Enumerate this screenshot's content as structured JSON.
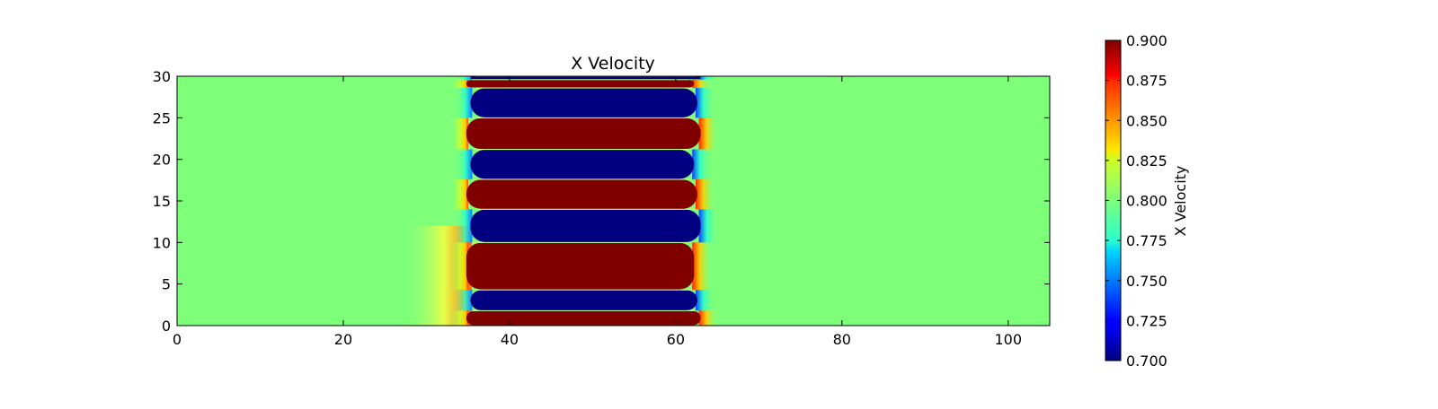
{
  "chart_data": {
    "type": "heatmap",
    "title": "X Velocity",
    "xlabel": "",
    "ylabel": "",
    "xlim": [
      0,
      105
    ],
    "ylim": [
      0,
      30
    ],
    "x_ticks": [
      0,
      20,
      40,
      60,
      80,
      100
    ],
    "y_ticks": [
      0,
      5,
      10,
      15,
      20,
      25,
      30
    ],
    "grid": false,
    "colormap": "jet",
    "background_value": 0.8,
    "mixing_region_x": [
      35,
      63
    ],
    "bands": [
      {
        "value": 0.9,
        "y": [
          0.0,
          1.8
        ]
      },
      {
        "value": 0.7,
        "y": [
          1.8,
          4.3
        ]
      },
      {
        "value": 0.9,
        "y": [
          4.3,
          10.0
        ]
      },
      {
        "value": 0.7,
        "y": [
          10.0,
          14.0
        ]
      },
      {
        "value": 0.9,
        "y": [
          14.0,
          17.6
        ]
      },
      {
        "value": 0.7,
        "y": [
          17.6,
          21.2
        ]
      },
      {
        "value": 0.9,
        "y": [
          21.2,
          25.0
        ]
      },
      {
        "value": 0.7,
        "y": [
          25.0,
          28.6
        ]
      },
      {
        "value": 0.9,
        "y": [
          28.6,
          29.6
        ]
      },
      {
        "value": 0.7,
        "y": [
          29.6,
          30.0
        ]
      }
    ],
    "colorbar": {
      "label": "X Velocity",
      "min": 0.7,
      "max": 0.9,
      "ticks": [
        "0.700",
        "0.725",
        "0.750",
        "0.775",
        "0.800",
        "0.825",
        "0.850",
        "0.875",
        "0.900"
      ]
    }
  }
}
